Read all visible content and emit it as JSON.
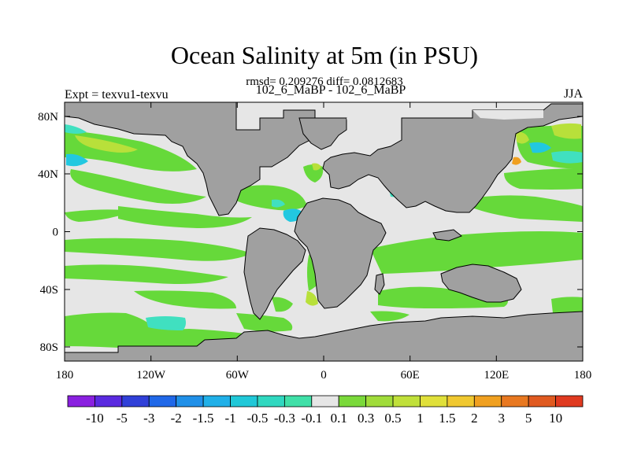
{
  "title": "Ocean Salinity at 5m (in PSU)",
  "subtitle": "rmsd= 0.209276 diff= 0.0812683",
  "expt_label": "Expt = texvu1-texvu",
  "period_label": "102_6_MaBP - 102_6_MaBP",
  "season_label": "JJA",
  "colors": {
    "land": "#a0a0a0",
    "no_change": "#e6e6e6",
    "green_light": "#8fe03c",
    "green": "#66d93a",
    "yellow_green": "#b8e03a",
    "cyan_light": "#40e0c0",
    "cyan": "#22c8e0",
    "blue": "#2050d0",
    "orange": "#f0a020",
    "red_orange": "#e06020"
  },
  "axes": {
    "x_ticks": [
      "180",
      "120W",
      "60W",
      "0",
      "60E",
      "120E",
      "180"
    ],
    "y_ticks": [
      "80N",
      "40N",
      "0",
      "40S",
      "80S"
    ]
  },
  "colorbar": {
    "labels": [
      "-10",
      "-5",
      "-3",
      "-2",
      "-1.5",
      "-1",
      "-0.5",
      "-0.3",
      "-0.1",
      "0.1",
      "0.3",
      "0.5",
      "1",
      "1.5",
      "2",
      "3",
      "5",
      "10"
    ],
    "colors": [
      "#8a20e0",
      "#5a2ae0",
      "#3040d8",
      "#2068e8",
      "#2090e8",
      "#20b0e8",
      "#20c8d8",
      "#30d8c0",
      "#40e0a8",
      "#e6e6e6",
      "#7ad93a",
      "#a0dc3a",
      "#c0e03a",
      "#e0e03a",
      "#f0c830",
      "#f0a020",
      "#e87820",
      "#e05a20",
      "#e03a20"
    ]
  }
}
